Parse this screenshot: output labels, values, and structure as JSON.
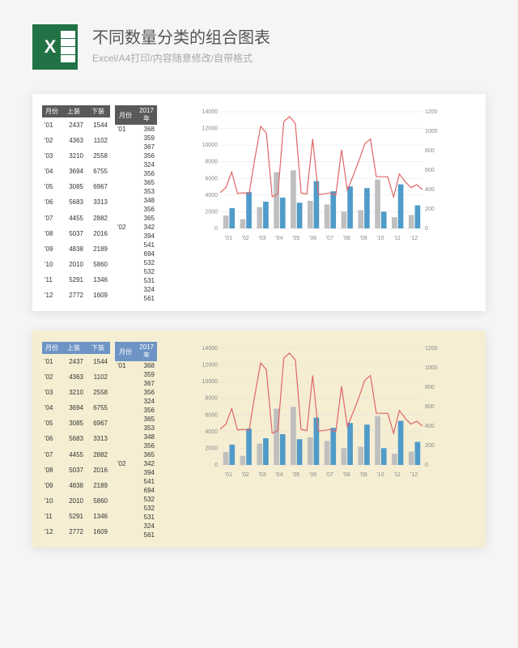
{
  "header": {
    "title": "不同数量分类的组合图表",
    "subtitle": "Excel/A4打印/内容随意修改/自带格式"
  },
  "table1": {
    "headers": [
      "月份",
      "上装",
      "下装"
    ],
    "rows": [
      [
        "'01",
        2437,
        1544
      ],
      [
        "'02",
        4363,
        1102
      ],
      [
        "'03",
        3210,
        2558
      ],
      [
        "'04",
        3694,
        6755
      ],
      [
        "'05",
        3085,
        6967
      ],
      [
        "'06",
        5683,
        3313
      ],
      [
        "'07",
        4455,
        2882
      ],
      [
        "'08",
        5037,
        2016
      ],
      [
        "'09",
        4838,
        2189
      ],
      [
        "'10",
        2010,
        5860
      ],
      [
        "'11",
        5291,
        1346
      ],
      [
        "'12",
        2772,
        1609
      ]
    ]
  },
  "table2": {
    "headers": [
      "月份",
      "2017年"
    ],
    "rows": [
      [
        "'01",
        368
      ],
      [
        "",
        359
      ],
      [
        "",
        367
      ],
      [
        "",
        356
      ],
      [
        "",
        324
      ],
      [
        "",
        356
      ],
      [
        "",
        365
      ],
      [
        "",
        353
      ],
      [
        "",
        348
      ],
      [
        "",
        356
      ],
      [
        "",
        365
      ],
      [
        "'02",
        342
      ],
      [
        "",
        394
      ],
      [
        "",
        541
      ],
      [
        "",
        694
      ],
      [
        "",
        532
      ],
      [
        "",
        532
      ],
      [
        "",
        531
      ],
      [
        "",
        324
      ],
      [
        "",
        561
      ]
    ]
  },
  "chart": {
    "type": "combo-bar-line",
    "categories": [
      "'01",
      "'02",
      "'03",
      "'04",
      "'05",
      "'06",
      "'07",
      "'08",
      "'09",
      "'10",
      "'11",
      "'12"
    ],
    "bar_blue": [
      2437,
      4363,
      3210,
      3694,
      3085,
      5683,
      4455,
      5037,
      4838,
      2010,
      5291,
      2772
    ],
    "bar_gray": [
      1544,
      1102,
      2558,
      6755,
      6967,
      3313,
      2882,
      2016,
      2189,
      5860,
      1346,
      1609
    ],
    "line_red": [
      368,
      420,
      580,
      359,
      367,
      356,
      720,
      1050,
      980,
      324,
      356,
      1100,
      1150,
      1080,
      365,
      353,
      920,
      348,
      356,
      365,
      342,
      810,
      394,
      541,
      694,
      870,
      920,
      532,
      532,
      531,
      324,
      561,
      480,
      420,
      450,
      400
    ],
    "y_left": {
      "min": 0,
      "max": 14000,
      "step": 2000
    },
    "y_right": {
      "min": 0,
      "max": 1200,
      "step": 200
    },
    "colors": {
      "blue": "#4f9bc9",
      "gray": "#bfbfbf",
      "red": "#e06666",
      "grid": "#e0e0e0"
    },
    "label_fontsize": 7
  },
  "panel1_header_bg": "#595959",
  "panel2_header_bg": "#6d94c4",
  "panel2_bg": "#f5eed3"
}
